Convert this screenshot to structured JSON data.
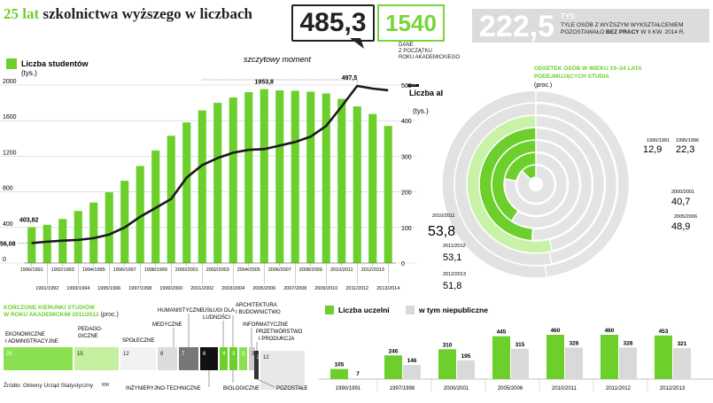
{
  "header": {
    "title_green": "25 lat",
    "title_dark": "szkolnictwa wyższego w liczbach",
    "box_main_value": "485,3",
    "box_green_value": "1540",
    "box_green_caption": "DANE\nZ POCZĄTKU\nROKU AKADEMICKIEGO",
    "box_grey_value": "222,5",
    "box_grey_unit": "TYS.",
    "box_grey_caption_1": "TYLE OSÓB Z WYŻSZYM WYKSZTAŁCENIEM",
    "box_grey_caption_2a": "POZOSTAWAŁO ",
    "box_grey_caption_2b": "BEZ PRACY",
    "box_grey_caption_2c": " W II KW. 2014 R.",
    "annotation": "szczytowy moment"
  },
  "colors": {
    "green": "#6ccf2b",
    "light_green": "#bff09a",
    "mid_green": "#8be052",
    "grey": "#d9d9d9",
    "dark": "#1a1a1a"
  },
  "chart_data": [
    {
      "type": "bar+line",
      "title": "Liczba studentów / Liczba absolwentów",
      "legend_students": "Liczba studentów",
      "legend_students_unit": "(tys.)",
      "legend_graduates": "Liczba absolwentów",
      "legend_graduates_unit": "(tys.)",
      "categories": [
        "1990/1991",
        "1991/1992",
        "1992/1993",
        "1993/1994",
        "1994/1995",
        "1995/1996",
        "1996/1997",
        "1997/1998",
        "1998/1999",
        "1999/2000",
        "2000/2001",
        "2001/2002",
        "2002/2003",
        "2003/2004",
        "2004/2005",
        "2005/2006",
        "2006/2007",
        "2007/2008",
        "2008/2009",
        "2009/2010",
        "2010/2011",
        "2011/2012",
        "2012/2013",
        "2013/2014"
      ],
      "students": [
        403.82,
        430,
        495,
        585,
        680,
        795,
        925,
        1090,
        1265,
        1430,
        1580,
        1715,
        1800,
        1860,
        1920,
        1953.8,
        1940,
        1935,
        1925,
        1905,
        1845,
        1760,
        1675,
        1540
      ],
      "graduates": [
        56.08,
        60,
        63,
        65,
        70,
        80,
        100,
        130,
        155,
        180,
        240,
        275,
        295,
        310,
        318,
        320,
        330,
        340,
        355,
        385,
        440,
        497.5,
        490,
        485.3
      ],
      "labels": {
        "students_first": "403,82",
        "graduates_first": "56,08",
        "students_peak": "1953,8",
        "graduates_peak": "497,5"
      },
      "yleft_ticks": [
        "2000",
        "1600",
        "1200",
        "800",
        "400",
        "0"
      ],
      "yright_ticks": [
        "500",
        "400",
        "300",
        "200",
        "100",
        "0"
      ],
      "yleft_lim": [
        0,
        2000
      ],
      "yright_lim": [
        0,
        500
      ]
    },
    {
      "type": "radial",
      "title": "ODSETEK OSÓB W WIEKU 19–24 LATA PODEJMUJĄCYCH STUDIA",
      "unit": "(proc.)",
      "items": [
        {
          "year": "1990/1991",
          "value": "12,9",
          "num": 12.9
        },
        {
          "year": "1995/1996",
          "value": "22,3",
          "num": 22.3
        },
        {
          "year": "2000/2001",
          "value": "40,7",
          "num": 40.7
        },
        {
          "year": "2005/2006",
          "value": "48,9",
          "num": 48.9
        },
        {
          "year": "2010/2011",
          "value": "53,8",
          "num": 53.8
        },
        {
          "year": "2011/2012",
          "value": "53,1",
          "num": 53.1
        },
        {
          "year": "2012/2013",
          "value": "51,8",
          "num": 51.8
        }
      ]
    },
    {
      "type": "treemap",
      "title_1": "KOŃCZONE KIERUNKI STUDIÓW",
      "title_2": "W ROKU AKADEMICKIM 2011/2012",
      "unit": "(proc.)",
      "items": [
        {
          "name": "EKONOMICZNE I ADMINISTRACYJNE",
          "value": 25
        },
        {
          "name": "PEDAGOGICZNE",
          "value": 15
        },
        {
          "name": "SPOŁECZNE",
          "value": 12
        },
        {
          "name": "MEDYCZNE",
          "value": 8
        },
        {
          "name": "HUMANISTYCZNE",
          "value": 7
        },
        {
          "name": "INŻYNIERYJNO-TECHNICZNE",
          "value": 6
        },
        {
          "name": "USŁUGI DLA LUDNOŚCI",
          "value": 4
        },
        {
          "name": "BIOLOGICZNE",
          "value": 3
        },
        {
          "name": "ARCHITEKTURA I BUDOWNICTWO",
          "value": 3
        },
        {
          "name": "INFORMATYCZNE",
          "value": 3
        },
        {
          "name": "PRZETWÓRSTWO I PRODUKCJA",
          "value": 2
        },
        {
          "name": "POZOSTAŁE",
          "value": 12
        }
      ],
      "labels": {
        "ekon_1": "EKONOMICZNE",
        "ekon_2": "I ADMINISTRACYJNE",
        "ped_1": "PEDAGO-",
        "ped_2": "GICZNE",
        "spol": "SPOŁECZNE",
        "med": "MEDYCZNE",
        "hum": "HUMANISTYCZNE",
        "usl_1": "USŁUGI DLA",
        "usl_2": "LUDNOŚCI",
        "arch_1": "ARCHITEKTURA",
        "arch_2": "I BUDOWNICTWO",
        "inf": "INFORMATYCZNE",
        "prz_1": "PRZETWÓRSTWO",
        "prz_2": "I PRODUKCJA",
        "inz": "INŻYNIERYJNO-TECHNICZNE",
        "bio": "BIOLOGICZNE",
        "poz": "POZOSTAŁE"
      }
    },
    {
      "type": "bar",
      "legend_all": "Liczba uczelni",
      "legend_private": "w tym niepubliczne",
      "categories": [
        "1990/1991",
        "1997/1998",
        "2000/2001",
        "2005/2006",
        "2010/2011",
        "2011/2012",
        "2012/2013"
      ],
      "series": [
        {
          "name": "Liczba uczelni",
          "values": [
            105,
            246,
            310,
            445,
            460,
            460,
            453
          ]
        },
        {
          "name": "w tym niepubliczne",
          "values": [
            7,
            146,
            195,
            315,
            328,
            328,
            321
          ]
        }
      ]
    }
  ],
  "footer": {
    "source": "Źródło: Główny Urząd Statystyczny",
    "credit": "RM"
  }
}
